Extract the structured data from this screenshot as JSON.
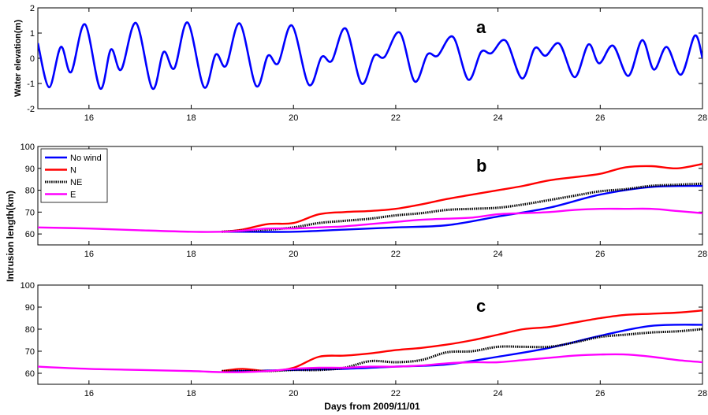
{
  "colors": {
    "elevation": "#0000ff",
    "no_wind": "#0000ff",
    "N": "#ff0000",
    "NE": "#000000",
    "E": "#ff00ff"
  },
  "xlabel": "Days from 2009/11/01",
  "intrusion_ylabel": "Intrusion length(km)",
  "chart_data": [
    {
      "type": "line",
      "panel_label": "a",
      "ylabel": "Water elevation(m)",
      "xlim": [
        15,
        28
      ],
      "ylim": [
        -2,
        2
      ],
      "xticks": [
        16,
        18,
        20,
        22,
        24,
        26,
        28
      ],
      "yticks": [
        -2,
        -1,
        0,
        1,
        2
      ],
      "tide": {
        "start": 15.0,
        "end": 28.0,
        "peaks": [
          [
            15.0,
            0.6
          ],
          [
            15.22,
            -1.15
          ],
          [
            15.45,
            0.45
          ],
          [
            15.65,
            -0.55
          ],
          [
            15.92,
            1.35
          ],
          [
            16.22,
            -1.2
          ],
          [
            16.43,
            0.35
          ],
          [
            16.63,
            -0.45
          ],
          [
            16.92,
            1.4
          ],
          [
            17.24,
            -1.2
          ],
          [
            17.46,
            0.25
          ],
          [
            17.67,
            -0.4
          ],
          [
            17.93,
            1.42
          ],
          [
            18.25,
            -1.15
          ],
          [
            18.48,
            0.15
          ],
          [
            18.68,
            -0.3
          ],
          [
            18.95,
            1.38
          ],
          [
            19.27,
            -1.1
          ],
          [
            19.5,
            0.1
          ],
          [
            19.7,
            -0.2
          ],
          [
            19.97,
            1.3
          ],
          [
            20.3,
            -1.05
          ],
          [
            20.55,
            0.05
          ],
          [
            20.75,
            -0.1
          ],
          [
            21.02,
            1.18
          ],
          [
            21.33,
            -1.0
          ],
          [
            21.58,
            0.1
          ],
          [
            21.78,
            0.05
          ],
          [
            22.08,
            1.02
          ],
          [
            22.37,
            -0.92
          ],
          [
            22.62,
            0.15
          ],
          [
            22.82,
            0.1
          ],
          [
            23.12,
            0.85
          ],
          [
            23.42,
            -0.85
          ],
          [
            23.67,
            0.25
          ],
          [
            23.87,
            0.2
          ],
          [
            24.15,
            0.7
          ],
          [
            24.47,
            -0.8
          ],
          [
            24.72,
            0.4
          ],
          [
            24.93,
            0.1
          ],
          [
            25.2,
            0.58
          ],
          [
            25.5,
            -0.75
          ],
          [
            25.77,
            0.55
          ],
          [
            25.98,
            -0.2
          ],
          [
            26.25,
            0.5
          ],
          [
            26.55,
            -0.7
          ],
          [
            26.82,
            0.72
          ],
          [
            27.05,
            -0.45
          ],
          [
            27.3,
            0.45
          ],
          [
            27.58,
            -0.65
          ],
          [
            27.85,
            0.9
          ],
          [
            28.0,
            0.0
          ]
        ]
      }
    },
    {
      "type": "line",
      "panel_label": "b",
      "xlim": [
        15,
        28
      ],
      "ylim": [
        55,
        100
      ],
      "xticks": [
        16,
        18,
        20,
        22,
        24,
        26,
        28
      ],
      "yticks": [
        60,
        70,
        80,
        90,
        100
      ],
      "legend": [
        "No wind",
        "N",
        "NE",
        "E"
      ],
      "legend_position": "top-left",
      "series": [
        {
          "name": "No wind",
          "x": [
            18.6,
            19.0,
            20.0,
            21.0,
            22.0,
            23.0,
            24.0,
            25.0,
            26.0,
            27.0,
            28.0
          ],
          "y": [
            61,
            61,
            61,
            62,
            63,
            64,
            68,
            72,
            78,
            81.5,
            82
          ]
        },
        {
          "name": "N",
          "x": [
            18.6,
            19.0,
            19.5,
            20.0,
            20.5,
            21.0,
            21.5,
            22.0,
            22.5,
            23.0,
            23.5,
            24.0,
            24.5,
            25.0,
            25.5,
            26.0,
            26.5,
            27.0,
            27.5,
            28.0
          ],
          "y": [
            61,
            62,
            64.5,
            65,
            69,
            70,
            70.5,
            71.5,
            73.5,
            76,
            78,
            80,
            82,
            84.5,
            86,
            87.5,
            90.5,
            91,
            90,
            92
          ]
        },
        {
          "name": "NE",
          "x": [
            18.6,
            19.0,
            19.5,
            20.0,
            20.5,
            21.0,
            21.5,
            22.0,
            22.5,
            23.0,
            23.5,
            24.0,
            24.5,
            25.0,
            25.5,
            26.0,
            26.5,
            27.0,
            27.5,
            28.0
          ],
          "y": [
            61,
            61.5,
            62,
            63,
            65,
            66,
            67,
            68.5,
            69.5,
            71,
            71.5,
            72,
            73.5,
            75.5,
            77.5,
            79.5,
            80.5,
            82,
            82.5,
            83
          ]
        },
        {
          "name": "E",
          "x": [
            15.0,
            16.0,
            17.0,
            18.0,
            18.6,
            19.0,
            19.5,
            20.0,
            20.5,
            21.0,
            21.5,
            22.0,
            22.5,
            23.0,
            23.5,
            24.0,
            24.5,
            25.0,
            25.5,
            26.0,
            26.5,
            27.0,
            27.5,
            28.0
          ],
          "y": [
            63,
            62.5,
            61.7,
            61,
            61,
            61.5,
            62.5,
            62.5,
            63,
            63.5,
            64.5,
            65.5,
            66.5,
            67,
            67.5,
            69,
            69.5,
            70,
            71,
            71.5,
            71.5,
            71.5,
            70.5,
            69.5
          ]
        }
      ]
    },
    {
      "type": "line",
      "panel_label": "c",
      "xlim": [
        15,
        28
      ],
      "ylim": [
        55,
        100
      ],
      "xticks": [
        16,
        18,
        20,
        22,
        24,
        26,
        28
      ],
      "yticks": [
        60,
        70,
        80,
        90,
        100
      ],
      "series": [
        {
          "name": "No wind",
          "x": [
            18.6,
            19.0,
            20.0,
            21.0,
            22.0,
            23.0,
            24.0,
            25.0,
            26.0,
            27.0,
            28.0
          ],
          "y": [
            61,
            61,
            61.5,
            62,
            63,
            64,
            67.5,
            71.5,
            77,
            81.5,
            82
          ]
        },
        {
          "name": "N",
          "x": [
            18.6,
            19.0,
            19.5,
            20.0,
            20.5,
            21.0,
            21.5,
            22.0,
            22.5,
            23.0,
            23.5,
            24.0,
            24.5,
            25.0,
            25.5,
            26.0,
            26.5,
            27.0,
            27.5,
            28.0
          ],
          "y": [
            61,
            62,
            61,
            62.5,
            67.5,
            68,
            69,
            70.5,
            71.5,
            73,
            75,
            77.5,
            80,
            81,
            83,
            85,
            86.5,
            87,
            87.5,
            88.5
          ]
        },
        {
          "name": "NE",
          "x": [
            18.6,
            19.0,
            19.5,
            20.0,
            20.5,
            21.0,
            21.5,
            22.0,
            22.5,
            23.0,
            23.5,
            24.0,
            24.5,
            25.0,
            25.5,
            26.0,
            26.5,
            27.0,
            27.5,
            28.0
          ],
          "y": [
            61,
            61,
            61,
            61.5,
            61.5,
            62.5,
            65.5,
            65,
            66,
            69.5,
            70,
            72,
            72,
            72,
            74,
            76.5,
            77.5,
            78.5,
            79,
            80
          ]
        },
        {
          "name": "E",
          "x": [
            15.0,
            16.0,
            17.0,
            18.0,
            18.6,
            19.0,
            19.5,
            20.0,
            20.5,
            21.0,
            21.5,
            22.0,
            22.5,
            23.0,
            23.5,
            24.0,
            24.5,
            25.0,
            25.5,
            26.0,
            26.5,
            27.0,
            27.5,
            28.0
          ],
          "y": [
            63,
            62,
            61.5,
            61,
            60.5,
            60.5,
            61,
            62,
            62.5,
            62.5,
            63,
            63,
            63.5,
            64.5,
            65,
            65,
            66,
            67,
            68,
            68.5,
            68.5,
            67.5,
            66,
            65
          ]
        }
      ]
    }
  ]
}
